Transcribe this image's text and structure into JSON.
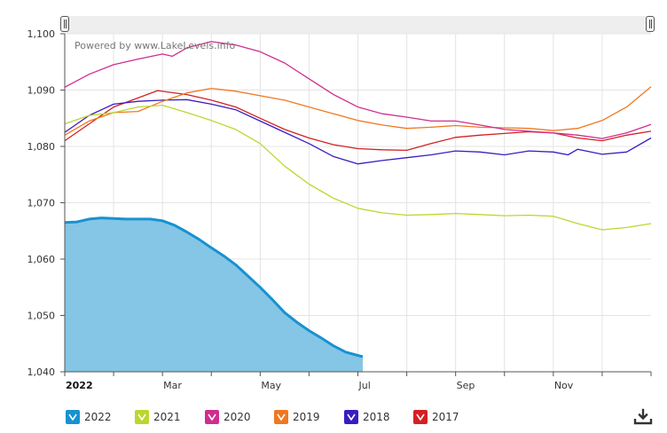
{
  "chart_data": {
    "type": "line",
    "watermark": "Powered by www.LakeLevels.info",
    "ylim": [
      1040,
      1100
    ],
    "xlim": [
      0,
      12
    ],
    "y_ticks": [
      "1,040",
      "1,050",
      "1,060",
      "1,070",
      "1,080",
      "1,090",
      "1,100"
    ],
    "x_tick_labels": [
      {
        "label": "2022",
        "month": 0,
        "bold": true
      },
      {
        "label": "Mar",
        "month": 2
      },
      {
        "label": "May",
        "month": 4
      },
      {
        "label": "Jul",
        "month": 6
      },
      {
        "label": "Sep",
        "month": 8
      },
      {
        "label": "Nov",
        "month": 10
      }
    ],
    "x_unit": "months since Jan 1",
    "series": [
      {
        "name": "2017",
        "color": "#d42024",
        "x": [
          0,
          0.5,
          1,
          1.5,
          1.9,
          2.5,
          3,
          3.5,
          4,
          4.5,
          5,
          5.5,
          6,
          6.5,
          7,
          7.5,
          8,
          8.5,
          9,
          9.5,
          10,
          10.5,
          11,
          11.5,
          12
        ],
        "y": [
          1081,
          1084,
          1087,
          1088.6,
          1089.9,
          1089.2,
          1088.2,
          1087,
          1085,
          1083,
          1081.5,
          1080.3,
          1079.6,
          1079.4,
          1079.3,
          1080.5,
          1081.6,
          1082,
          1082.3,
          1082.6,
          1082.4,
          1081.5,
          1081,
          1082,
          1082.7
        ]
      },
      {
        "name": "2018",
        "color": "#3a1cc2",
        "x": [
          0,
          0.5,
          1,
          1.5,
          2,
          2.5,
          3,
          3.5,
          4,
          4.5,
          5,
          5.5,
          6,
          6.5,
          7,
          7.5,
          8,
          8.5,
          9,
          9.5,
          10,
          10.3,
          10.5,
          11,
          11.5,
          12
        ],
        "y": [
          1082.5,
          1085.5,
          1087.5,
          1088,
          1088.2,
          1088.3,
          1087.5,
          1086.5,
          1084.5,
          1082.5,
          1080.5,
          1078.2,
          1076.9,
          1077.5,
          1078,
          1078.5,
          1079.2,
          1079,
          1078.5,
          1079.2,
          1079,
          1078.5,
          1079.5,
          1078.6,
          1079,
          1081.5
        ]
      },
      {
        "name": "2019",
        "color": "#f07822",
        "x": [
          0,
          0.5,
          1,
          1.5,
          2,
          2.5,
          3,
          3.5,
          4,
          4.5,
          5,
          5.5,
          6,
          6.5,
          7,
          7.5,
          8,
          8.5,
          9,
          9.5,
          10,
          10.5,
          11,
          11.5,
          12
        ],
        "y": [
          1082,
          1084.5,
          1086,
          1086.2,
          1088,
          1089.5,
          1090.3,
          1089.8,
          1089,
          1088.2,
          1087,
          1085.8,
          1084.6,
          1083.8,
          1083.2,
          1083.4,
          1083.7,
          1083.4,
          1083.3,
          1083.2,
          1082.8,
          1083.2,
          1084.6,
          1087,
          1090.6
        ]
      },
      {
        "name": "2020",
        "color": "#d02d8f",
        "x": [
          0,
          0.5,
          1,
          1.5,
          2,
          2.2,
          2.5,
          3,
          3.5,
          4,
          4.5,
          5,
          5.5,
          6,
          6.5,
          7,
          7.5,
          8,
          8.5,
          9,
          9.5,
          10,
          10.5,
          11,
          11.5,
          12
        ],
        "y": [
          1090.5,
          1092.8,
          1094.5,
          1095.5,
          1096.4,
          1096,
          1097.5,
          1098.6,
          1098,
          1096.8,
          1094.8,
          1092,
          1089.2,
          1087,
          1085.8,
          1085.2,
          1084.5,
          1084.5,
          1083.8,
          1083,
          1082.7,
          1082.4,
          1082,
          1081.4,
          1082.4,
          1083.9
        ]
      },
      {
        "name": "2021",
        "color": "#b9d82d",
        "x": [
          0,
          0.5,
          1,
          1.5,
          2,
          2.5,
          3,
          3.5,
          4,
          4.5,
          5,
          5.5,
          6,
          6.5,
          7,
          7.5,
          8,
          8.5,
          9,
          9.5,
          10,
          10.5,
          11,
          11.5,
          12
        ],
        "y": [
          1084,
          1085.5,
          1086,
          1087,
          1087.3,
          1086,
          1084.6,
          1083,
          1080.5,
          1076.5,
          1073.3,
          1070.8,
          1069,
          1068.2,
          1067.8,
          1067.9,
          1068.1,
          1067.9,
          1067.7,
          1067.8,
          1067.6,
          1066.3,
          1065.2,
          1065.6,
          1066.3
        ]
      },
      {
        "name": "2022",
        "color": "#1792d1",
        "fill": "#85c5e5",
        "area": true,
        "x": [
          0,
          0.25,
          0.5,
          0.75,
          1,
          1.25,
          1.5,
          1.75,
          2,
          2.25,
          2.5,
          2.75,
          3,
          3.25,
          3.5,
          3.75,
          4,
          4.25,
          4.5,
          4.75,
          5,
          5.25,
          5.5,
          5.75,
          6,
          6.1
        ],
        "y": [
          1066.5,
          1066.6,
          1067.1,
          1067.3,
          1067.2,
          1067.1,
          1067.1,
          1067.1,
          1066.8,
          1066,
          1064.8,
          1063.5,
          1062,
          1060.6,
          1059,
          1057,
          1055,
          1052.8,
          1050.5,
          1048.8,
          1047.3,
          1046,
          1044.6,
          1043.5,
          1042.9,
          1042.7
        ]
      }
    ]
  },
  "legend": [
    {
      "label": "2022",
      "color": "#1792d1"
    },
    {
      "label": "2021",
      "color": "#b9d82d"
    },
    {
      "label": "2020",
      "color": "#d02d8f"
    },
    {
      "label": "2019",
      "color": "#f07822"
    },
    {
      "label": "2018",
      "color": "#3a1cc2"
    },
    {
      "label": "2017",
      "color": "#d42024"
    }
  ],
  "icons": {
    "download": "download-icon",
    "range_handle": "drag-handle-icon"
  }
}
